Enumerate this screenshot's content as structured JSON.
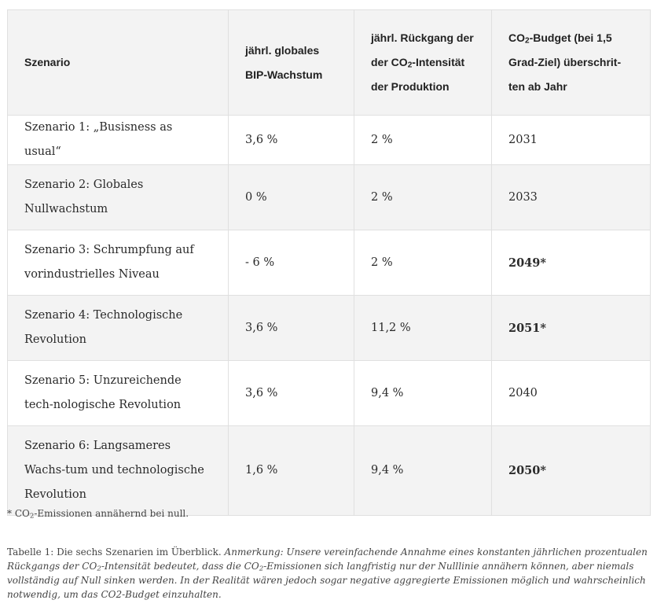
{
  "table": {
    "headers": {
      "scenario": "Szenario",
      "gdp": "jährl. globales BIP-Wachstum",
      "intensity_pre": "jährl. Rückgang der der CO",
      "intensity_sub": "2",
      "intensity_post": "-Intensität der Produktion",
      "budget_pre": "CO",
      "budget_sub": "2",
      "budget_post": "-Budget (bei 1,5 Grad-Ziel) überschrit-ten ab Jahr"
    },
    "rows": [
      {
        "scenario": "Szenario 1: „Busisness as usual“",
        "gdp": "3,6 %",
        "intensity": "2 %",
        "year": "2031"
      },
      {
        "scenario": "Szenario 2: Globales Nullwachstum",
        "gdp": "0 %",
        "intensity": "2 %",
        "year": "2033"
      },
      {
        "scenario": "Szenario 3: Schrumpfung auf vorindustrielles Niveau",
        "gdp": "- 6 %",
        "intensity": "2 %",
        "year": "2049*"
      },
      {
        "scenario": "Szenario 4: Technologische Revolution",
        "gdp": "3,6 %",
        "intensity": "11,2 %",
        "year": "2051*"
      },
      {
        "scenario": "Szenario 5: Unzureichende tech-nologische Revolution",
        "gdp": "3,6 %",
        "intensity": "9,4 %",
        "year": "2040"
      },
      {
        "scenario": "Szenario 6: Langsameres Wachs-tum und technologische Revolution",
        "gdp": "1,6 %",
        "intensity": "9,4 %",
        "year": "2050*"
      }
    ]
  },
  "footnote": {
    "pre": "* CO",
    "sub": "2",
    "post": "-Emissionen annähernd bei null."
  },
  "caption": {
    "label": "Tabelle 1: Die sechs Szenarien im Überblick. ",
    "note_a": "Anmerkung: Unsere vereinfachende Annahme eines konstanten jährlichen prozentualen Rückgangs der CO",
    "note_sub1": "2",
    "note_b": "-Intensität bedeutet, dass die CO",
    "note_sub2": "2",
    "note_c": "-Emissionen sich langfristig nur der Nulllinie annähern können, aber niemals vollständig auf Null sinken werden. In der Realität wären jedoch sogar negative aggregierte Emissionen möglich und wahrscheinlich notwendig, um das CO2-Budget einzuhalten."
  }
}
